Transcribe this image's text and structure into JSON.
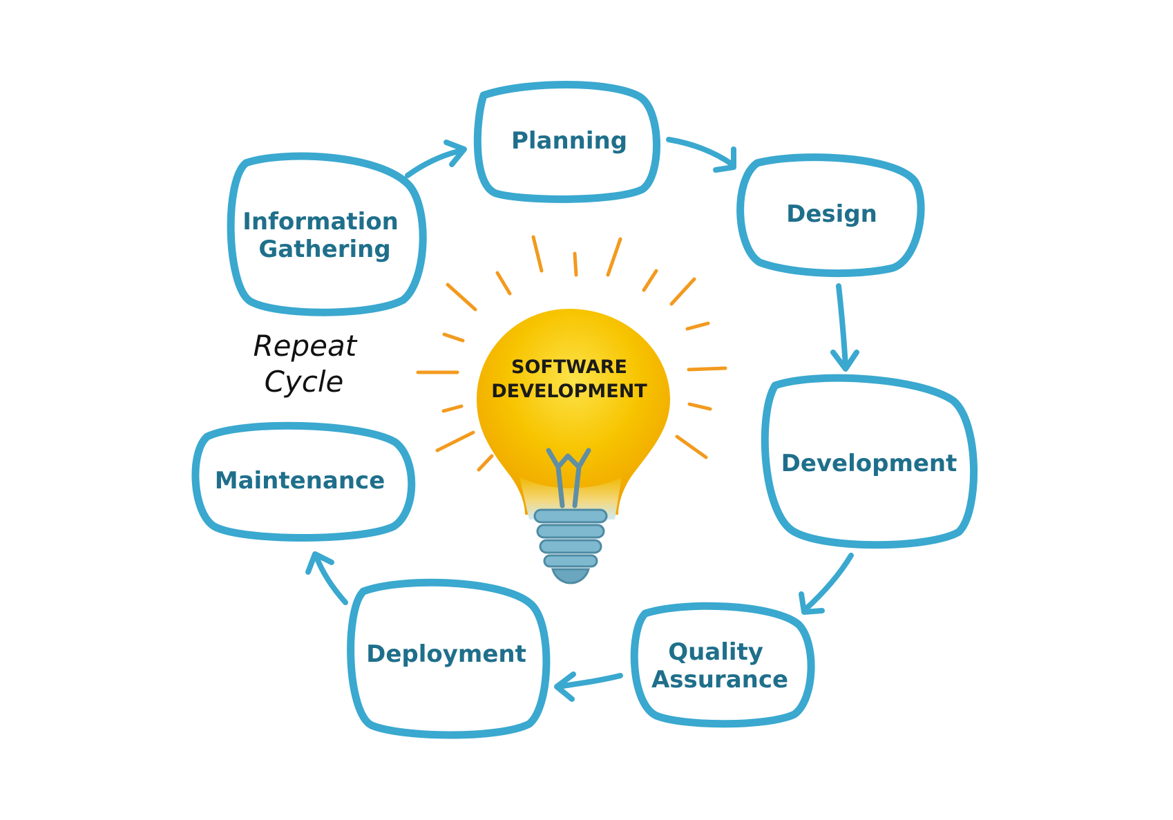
{
  "stages": [
    {
      "id": "planning",
      "lines": [
        "Planning"
      ]
    },
    {
      "id": "design",
      "lines": [
        "Design"
      ]
    },
    {
      "id": "development",
      "lines": [
        "Development"
      ]
    },
    {
      "id": "quality-assurance",
      "lines": [
        "Quality",
        "Assurance"
      ]
    },
    {
      "id": "deployment",
      "lines": [
        "Deployment"
      ]
    },
    {
      "id": "maintenance",
      "lines": [
        "Maintenance"
      ]
    },
    {
      "id": "information-gathering",
      "lines": [
        "Information",
        "Gathering"
      ]
    }
  ],
  "center": {
    "line1": "SOFTWARE",
    "line2": "DEVELOPMENT"
  },
  "repeat": {
    "line1": "Repeat",
    "line2": "Cycle"
  },
  "colors": {
    "outline": "#3aa8cf",
    "stage_text": "#1f6f8b",
    "bulb_glow": "#f7c400",
    "bulb_base": "#7fb9cf",
    "rays": "#f29a1f"
  }
}
